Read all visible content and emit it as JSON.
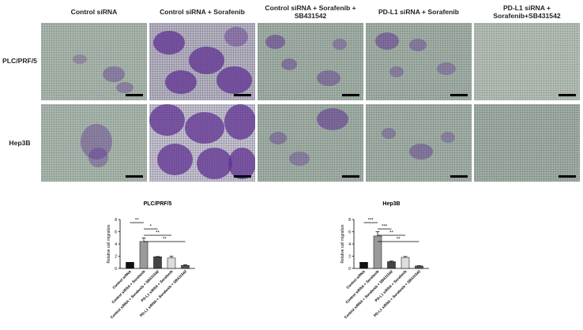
{
  "figure": {
    "column_headers": [
      "Control siRNA",
      "Control siRNA + Sorafenib",
      "Control siRNA + Sorafenib + SB431542",
      "PD-L1 siRNA + Sorafenib",
      "PD-L1 siRNA + Sorafenib+SB431542"
    ],
    "row_labels": [
      "PLC/PRF/5",
      "Hep3B"
    ]
  },
  "chart_data": [
    {
      "type": "bar",
      "title": "PLC/PRF/5",
      "ylabel": "Relative cell migration",
      "xlabel": "",
      "ylim": [
        0,
        8
      ],
      "yticks": [
        0,
        2,
        4,
        6,
        8
      ],
      "categories": [
        "Control siRNA",
        "Control siRNA + Sorafenib",
        "Control siRNA + Sorafenib + SB431542",
        "PD-L1 siRNA + Sorafenib",
        "PD-L1 siRNA + Sorafenib + SB431542"
      ],
      "values": [
        1.0,
        4.4,
        1.9,
        1.7,
        0.5
      ],
      "errors": [
        0.0,
        0.6,
        0.05,
        0.3,
        0.1
      ],
      "bar_colors": [
        "#111111",
        "#9a9a9a",
        "#444444",
        "#dcdcdc",
        "#555555"
      ],
      "significance": [
        {
          "from": 0,
          "to": 1,
          "label": "**"
        },
        {
          "from": 1,
          "to": 2,
          "label": "*"
        },
        {
          "from": 1,
          "to": 3,
          "label": "**"
        },
        {
          "from": 1,
          "to": 4,
          "label": "**"
        }
      ]
    },
    {
      "type": "bar",
      "title": "Hep3B",
      "ylabel": "Relative cell migration",
      "xlabel": "",
      "ylim": [
        0,
        8
      ],
      "yticks": [
        0,
        2,
        4,
        6,
        8
      ],
      "categories": [
        "Control siRNA",
        "Control siRNA + Sorafenib",
        "Control siRNA + Sorafenib + SB431542",
        "PD-L1 siRNA + Sorafenib",
        "PD-L1 siRNA + Sorafenib + SB431542"
      ],
      "values": [
        1.0,
        5.3,
        1.1,
        1.8,
        0.4
      ],
      "errors": [
        0.0,
        0.7,
        0.1,
        0.15,
        0.05
      ],
      "bar_colors": [
        "#111111",
        "#9a9a9a",
        "#444444",
        "#dcdcdc",
        "#555555"
      ],
      "significance": [
        {
          "from": 0,
          "to": 1,
          "label": "***"
        },
        {
          "from": 1,
          "to": 2,
          "label": "***"
        },
        {
          "from": 1,
          "to": 3,
          "label": "**"
        },
        {
          "from": 1,
          "to": 4,
          "label": "**"
        }
      ]
    }
  ]
}
